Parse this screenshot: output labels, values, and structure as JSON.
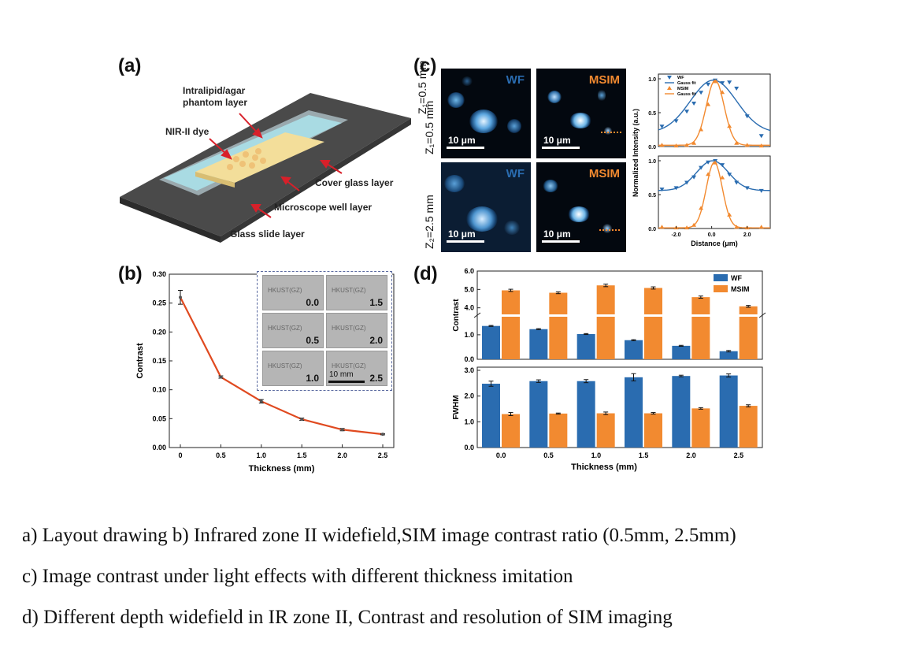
{
  "panels": {
    "a": "(a)",
    "b": "(b)",
    "c": "(c)",
    "d": "(d)"
  },
  "schematic": {
    "labels": [
      "Intralipid/agar phantom layer",
      "NIR-II dye",
      "Cover glass  layer",
      "Microscope well layer",
      "Glass slide layer"
    ]
  },
  "micrographs": {
    "row_labels": [
      "Z₁=0.5 mm",
      "Z₂=2.5 mm"
    ],
    "wf_tag": "WF",
    "msim_tag": "MSIM",
    "scalebar": "10 μm"
  },
  "inset": {
    "tile_text": "HKUST(GZ)",
    "values": [
      "0.0",
      "1.5",
      "0.5",
      "2.0",
      "1.0",
      "2.5"
    ],
    "scalebar": "10 mm"
  },
  "captions": [
    "a) Layout drawing   b) Infrared zone II widefield,SIM image contrast ratio (0.5mm, 2.5mm)",
    "c) Image contrast under light effects with different thickness imitation",
    "d) Different depth widefield in IR zone II, Contrast and resolution of SIM imaging"
  ],
  "colors": {
    "wf": "#2a6cb0",
    "msim": "#f28a30",
    "line_b": "#e04a20"
  },
  "chart_data": [
    {
      "id": "b",
      "type": "line",
      "x": [
        0,
        0.5,
        1.0,
        1.5,
        2.0,
        2.5
      ],
      "y": [
        0.26,
        0.122,
        0.08,
        0.049,
        0.031,
        0.023
      ],
      "err": [
        0.012,
        0.002,
        0.003,
        0.002,
        0.002,
        0.001
      ],
      "xlabel": "Thickness (mm)",
      "ylabel": "Contrast",
      "xlim": [
        0,
        2.5
      ],
      "ylim": [
        0,
        0.3
      ],
      "xticks": [
        "0",
        "0.5",
        "1.0",
        "1.5",
        "2.0",
        "2.5"
      ],
      "yticks": [
        "0.00",
        "0.05",
        "0.10",
        "0.15",
        "0.20",
        "0.25",
        "0.30"
      ]
    },
    {
      "id": "c-profiles",
      "type": "scatter",
      "xlabel": "Distance (μm)",
      "ylabel": "Normalized Intensity (a.u.)",
      "xlim": [
        -3.0,
        3.3
      ],
      "ylim": [
        0,
        1.0
      ],
      "xticks": [
        "-2.0",
        "0.0",
        "2.0"
      ],
      "yticks": [
        "0.0",
        "0.5",
        "1.0"
      ],
      "legend": [
        "WF",
        "Gauss fit",
        "MSIM",
        "Gauss fit"
      ],
      "plots": [
        {
          "row": "Z1",
          "series": [
            {
              "name": "WF",
              "x": [
                -2.8,
                -2.0,
                -1.4,
                -1.0,
                -0.6,
                -0.2,
                0.2,
                0.6,
                1.0,
                1.4,
                2.0,
                2.8
              ],
              "y": [
                0.3,
                0.38,
                0.52,
                0.64,
                0.8,
                0.92,
                0.98,
                0.94,
                0.95,
                0.86,
                0.45,
                0.16
              ]
            },
            {
              "name": "MSIM",
              "x": [
                -2.8,
                -2.0,
                -1.4,
                -1.0,
                -0.6,
                -0.2,
                0.2,
                0.6,
                1.0,
                1.4,
                2.0,
                2.8
              ],
              "y": [
                0.02,
                0.01,
                0.02,
                0.05,
                0.25,
                0.62,
                0.96,
                0.8,
                0.3,
                0.05,
                0.02,
                0.01
              ]
            }
          ]
        },
        {
          "row": "Z2",
          "series": [
            {
              "name": "WF",
              "x": [
                -2.8,
                -2.0,
                -1.4,
                -1.0,
                -0.6,
                -0.2,
                0.2,
                0.6,
                1.0,
                1.4,
                2.0,
                2.8
              ],
              "y": [
                0.58,
                0.6,
                0.68,
                0.76,
                0.9,
                0.98,
                1.0,
                0.94,
                0.8,
                0.68,
                0.6,
                0.56
              ]
            },
            {
              "name": "MSIM",
              "x": [
                -2.8,
                -2.0,
                -1.4,
                -1.0,
                -0.6,
                -0.2,
                0.2,
                0.6,
                1.0,
                1.4,
                2.0,
                2.8
              ],
              "y": [
                0.02,
                0.01,
                0.01,
                0.05,
                0.3,
                0.8,
                0.97,
                0.75,
                0.2,
                0.02,
                0.01,
                0.02
              ]
            }
          ]
        }
      ]
    },
    {
      "id": "d-contrast",
      "type": "bar",
      "categories": [
        "0.0",
        "0.5",
        "1.0",
        "1.5",
        "2.0",
        "2.5"
      ],
      "series": [
        {
          "name": "WF",
          "values": [
            1.36,
            1.23,
            1.03,
            0.78,
            0.55,
            0.33
          ],
          "err": [
            0.02,
            0.02,
            0.02,
            0.02,
            0.02,
            0.03
          ]
        },
        {
          "name": "MSIM",
          "values": [
            4.95,
            4.82,
            5.22,
            5.08,
            4.58,
            4.08
          ],
          "err": [
            0.06,
            0.05,
            0.07,
            0.06,
            0.06,
            0.05
          ]
        }
      ],
      "ylabel": "Contrast",
      "ylim": [
        0,
        6.0
      ],
      "axis_break": [
        1.8,
        3.6
      ],
      "yticks": [
        "0.0",
        "1.0",
        "4.0",
        "5.0",
        "6.0"
      ],
      "legend": [
        "WF",
        "MSIM"
      ]
    },
    {
      "id": "d-fwhm",
      "type": "bar",
      "categories": [
        "0.0",
        "0.5",
        "1.0",
        "1.5",
        "2.0",
        "2.5"
      ],
      "series": [
        {
          "name": "WF",
          "values": [
            2.48,
            2.58,
            2.58,
            2.73,
            2.78,
            2.8
          ],
          "err": [
            0.1,
            0.05,
            0.06,
            0.14,
            0.03,
            0.06
          ]
        },
        {
          "name": "MSIM",
          "values": [
            1.3,
            1.32,
            1.33,
            1.33,
            1.52,
            1.62
          ],
          "err": [
            0.06,
            0.02,
            0.05,
            0.03,
            0.03,
            0.04
          ]
        }
      ],
      "xlabel": "Thickness (mm)",
      "ylabel": "FWHM",
      "ylim": [
        0,
        3.0
      ],
      "yticks": [
        "0.0",
        "1.0",
        "2.0",
        "3.0"
      ]
    }
  ]
}
